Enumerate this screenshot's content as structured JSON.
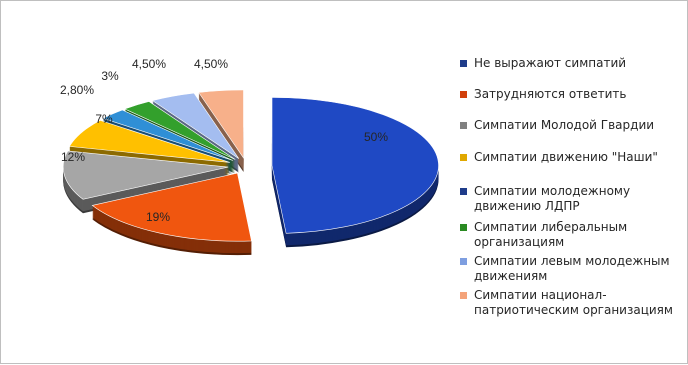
{
  "chart_data": {
    "type": "pie",
    "style": "3d-exploded",
    "title": "",
    "slices": [
      {
        "label": "Не выражают симпатий",
        "value": 50,
        "value_label": "50%",
        "color": "#1f49c4"
      },
      {
        "label": "Затрудняются ответить",
        "value": 19,
        "value_label": "19%",
        "color": "#f0560f"
      },
      {
        "label": "Симпатии Молодой Гвардии",
        "value": 12,
        "value_label": "12%",
        "color": "#a6a6a6"
      },
      {
        "label": "Симпатии движению \"Наши\"",
        "value": 7,
        "value_label": "7%",
        "color": "#ffc000"
      },
      {
        "label": "Симпатии молодежному движению ЛДПР",
        "value": 2.8,
        "value_label": "2,80%",
        "color": "#2f8fd6"
      },
      {
        "label": "Симпатии либеральным организациям",
        "value": 3,
        "value_label": "3%",
        "color": "#33a02c"
      },
      {
        "label": "Симпатии левым молодежным движениям",
        "value": 4.5,
        "value_label": "4,50%",
        "color": "#a4bdf0"
      },
      {
        "label": "Симпатии национал-патриотическим организациям",
        "value": 4.5,
        "value_label": "4,50%",
        "color": "#f7b08a"
      }
    ],
    "legend_position": "right",
    "legend_swatch_colors": [
      "#1f3c8a",
      "#d1400b",
      "#808080",
      "#e0a800",
      "#1f3c8a",
      "#2a8a22",
      "#7e9ee0",
      "#f4a37a"
    ]
  },
  "legend": {
    "items": [
      "Не выражают симпатий",
      "Затрудняются ответить",
      "Симпатии Молодой Гвардии",
      "Симпатии движению \"Наши\"",
      "Симпатии молодежному движению ЛДПР",
      "Симпатии либеральным организациям",
      "Симпатии левым молодежным движениям",
      "Симпатии национал-патриотическим организациям"
    ]
  }
}
